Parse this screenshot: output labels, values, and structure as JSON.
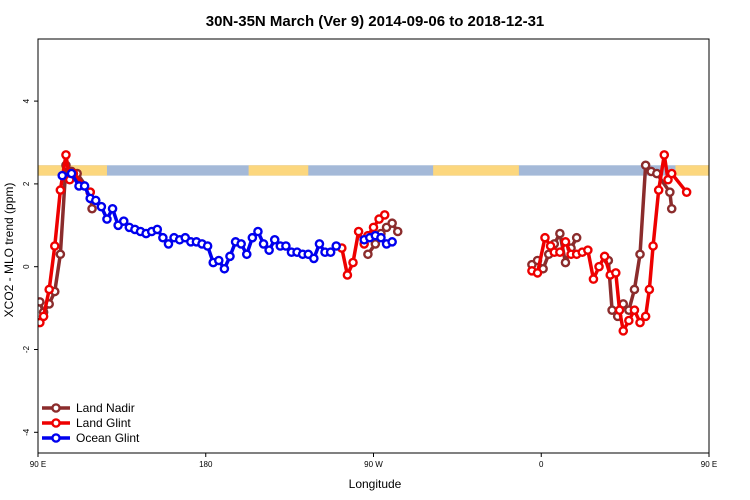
{
  "chart_data": {
    "type": "line",
    "title": "30N-35N March (Ver 9)   2014-09-06 to 2018-12-31",
    "xlabel": "Longitude",
    "ylabel": "XCO2 - MLO trend (ppm)",
    "xlim": [
      90,
      450
    ],
    "ylim": [
      -4.5,
      5.5
    ],
    "x_ticks": [
      {
        "value": 90,
        "label": "90 E"
      },
      {
        "value": 180,
        "label": "180"
      },
      {
        "value": 270,
        "label": "90 W"
      },
      {
        "value": 360,
        "label": "0"
      },
      {
        "value": 450,
        "label": "90 E"
      },
      {
        "value": 540,
        "label": "180"
      }
    ],
    "y_ticks": [
      {
        "value": -4,
        "label": "-4"
      },
      {
        "value": -2,
        "label": "-2"
      },
      {
        "value": 0,
        "label": "0"
      },
      {
        "value": 2,
        "label": "2"
      },
      {
        "value": 4,
        "label": "4"
      }
    ],
    "legend_position": "bottom-left",
    "land_mask_band": {
      "y_range": [
        2.2,
        2.45
      ],
      "ocean_color": "#a4b9d8",
      "land_color": "#fcd77e",
      "land_segments": [
        [
          90,
          127
        ],
        [
          203,
          235
        ],
        [
          302,
          348
        ],
        [
          432,
          467
        ]
      ]
    },
    "series": [
      {
        "name": "Land Nadir",
        "color": "#8b2c2c",
        "segments": [
          [
            [
              91,
              -0.85
            ],
            [
              93,
              -1.1
            ],
            [
              96,
              -0.9
            ],
            [
              99,
              -0.6
            ],
            [
              102,
              0.3
            ],
            [
              105,
              2.45
            ],
            [
              108,
              2.3
            ],
            [
              111,
              2.25
            ],
            [
              118,
              1.8
            ],
            [
              119,
              1.4
            ]
          ],
          [
            [
              267,
              0.3
            ],
            [
              271,
              0.55
            ],
            [
              274,
              0.8
            ],
            [
              277,
              0.95
            ],
            [
              280,
              1.05
            ],
            [
              283,
              0.85
            ]
          ],
          [
            [
              355,
              0.05
            ],
            [
              358,
              0.15
            ],
            [
              361,
              -0.05
            ],
            [
              364,
              0.3
            ],
            [
              367,
              0.55
            ],
            [
              370,
              0.8
            ],
            [
              373,
              0.1
            ],
            [
              376,
              0.45
            ],
            [
              379,
              0.7
            ]
          ],
          [
            [
              396,
              0.15
            ],
            [
              398,
              -1.05
            ],
            [
              401,
              -1.2
            ],
            [
              404,
              -0.9
            ],
            [
              407,
              -1.05
            ],
            [
              410,
              -0.55
            ],
            [
              413,
              0.3
            ],
            [
              416,
              2.45
            ],
            [
              419,
              2.3
            ],
            [
              422,
              2.25
            ],
            [
              429,
              1.8
            ],
            [
              430,
              1.4
            ]
          ]
        ]
      },
      {
        "name": "Land Glint",
        "color": "#ee0000",
        "segments": [
          [
            [
              91,
              -1.35
            ],
            [
              93,
              -1.2
            ],
            [
              96,
              -0.55
            ],
            [
              99,
              0.5
            ],
            [
              102,
              1.85
            ],
            [
              105,
              2.7
            ],
            [
              107,
              2.1
            ],
            [
              109,
              2.25
            ],
            [
              118,
              1.8
            ]
          ],
          [
            [
              253,
              0.45
            ],
            [
              256,
              -0.2
            ],
            [
              259,
              0.1
            ],
            [
              262,
              0.85
            ],
            [
              265,
              0.55
            ],
            [
              267,
              0.75
            ],
            [
              270,
              0.95
            ],
            [
              273,
              1.15
            ],
            [
              276,
              1.25
            ]
          ],
          [
            [
              355,
              -0.1
            ],
            [
              358,
              -0.15
            ],
            [
              362,
              0.7
            ],
            [
              365,
              0.5
            ],
            [
              367,
              0.35
            ],
            [
              370,
              0.35
            ],
            [
              373,
              0.6
            ],
            [
              376,
              0.3
            ],
            [
              379,
              0.3
            ],
            [
              382,
              0.35
            ],
            [
              385,
              0.4
            ],
            [
              388,
              -0.3
            ],
            [
              391,
              0.0
            ],
            [
              394,
              0.25
            ],
            [
              397,
              -0.2
            ],
            [
              400,
              -0.15
            ],
            [
              402,
              -1.05
            ],
            [
              404,
              -1.55
            ],
            [
              407,
              -1.3
            ],
            [
              410,
              -1.05
            ],
            [
              413,
              -1.35
            ],
            [
              416,
              -1.2
            ],
            [
              418,
              -0.55
            ],
            [
              420,
              0.5
            ],
            [
              423,
              1.85
            ],
            [
              426,
              2.7
            ],
            [
              428,
              2.1
            ],
            [
              430,
              2.25
            ],
            [
              438,
              1.8
            ]
          ]
        ]
      },
      {
        "name": "Ocean Glint",
        "color": "#0000ee",
        "segments": [
          [
            [
              103,
              2.2
            ],
            [
              108,
              2.25
            ],
            [
              112,
              1.95
            ],
            [
              115,
              1.95
            ],
            [
              118,
              1.65
            ],
            [
              121,
              1.6
            ],
            [
              124,
              1.45
            ],
            [
              127,
              1.15
            ],
            [
              130,
              1.4
            ],
            [
              133,
              1.0
            ],
            [
              136,
              1.1
            ],
            [
              139,
              0.95
            ],
            [
              142,
              0.9
            ],
            [
              145,
              0.85
            ],
            [
              148,
              0.8
            ],
            [
              151,
              0.85
            ],
            [
              154,
              0.9
            ],
            [
              157,
              0.7
            ],
            [
              160,
              0.55
            ],
            [
              163,
              0.7
            ],
            [
              166,
              0.65
            ],
            [
              169,
              0.7
            ],
            [
              172,
              0.6
            ],
            [
              175,
              0.6
            ],
            [
              178,
              0.55
            ],
            [
              181,
              0.5
            ],
            [
              184,
              0.1
            ],
            [
              187,
              0.15
            ],
            [
              190,
              -0.05
            ],
            [
              193,
              0.25
            ],
            [
              196,
              0.6
            ],
            [
              199,
              0.55
            ],
            [
              202,
              0.3
            ],
            [
              205,
              0.7
            ],
            [
              208,
              0.85
            ],
            [
              211,
              0.55
            ],
            [
              214,
              0.4
            ],
            [
              217,
              0.65
            ],
            [
              220,
              0.5
            ],
            [
              223,
              0.5
            ],
            [
              226,
              0.35
            ],
            [
              229,
              0.35
            ],
            [
              232,
              0.3
            ],
            [
              235,
              0.3
            ],
            [
              238,
              0.2
            ],
            [
              241,
              0.55
            ],
            [
              244,
              0.35
            ],
            [
              247,
              0.35
            ],
            [
              250,
              0.5
            ]
          ],
          [
            [
              265,
              0.65
            ],
            [
              268,
              0.7
            ],
            [
              271,
              0.75
            ],
            [
              274,
              0.7
            ],
            [
              277,
              0.55
            ],
            [
              280,
              0.6
            ]
          ]
        ]
      }
    ]
  }
}
